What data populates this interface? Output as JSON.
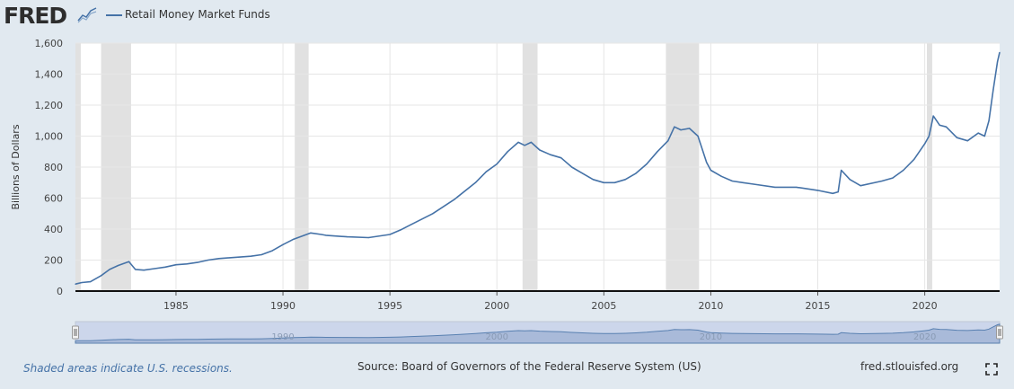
{
  "header": {
    "logo_text": "FRED",
    "legend_label": "Retail Money Market Funds"
  },
  "colors": {
    "series": "#4572a7",
    "recession": "#e1e1e1",
    "background": "#e1e9f0",
    "plot_bg": "#ffffff"
  },
  "chart_data": {
    "type": "line",
    "title": "",
    "ylabel": "Billions of Dollars",
    "xlabel": "",
    "xlim": [
      1980.3,
      2023.5
    ],
    "ylim": [
      0,
      1600
    ],
    "x_ticks": [
      1985,
      1990,
      1995,
      2000,
      2005,
      2010,
      2015,
      2020
    ],
    "y_ticks": [
      0,
      200,
      400,
      600,
      800,
      1000,
      1200,
      1400,
      1600
    ],
    "y_tick_labels": [
      "0",
      "200",
      "400",
      "600",
      "800",
      "1,000",
      "1,200",
      "1,400",
      "1,600"
    ],
    "recessions": [
      [
        1980.0,
        1980.55
      ],
      [
        1981.5,
        1982.9
      ],
      [
        1990.55,
        1991.2
      ],
      [
        2001.2,
        2001.9
      ],
      [
        2007.9,
        2009.45
      ],
      [
        2020.1,
        2020.35
      ]
    ],
    "series": [
      {
        "name": "Retail Money Market Funds",
        "x": [
          1980.3,
          1980.6,
          1981.0,
          1981.5,
          1981.9,
          1982.3,
          1982.8,
          1983.1,
          1983.5,
          1984.0,
          1984.5,
          1985.0,
          1985.5,
          1986.0,
          1986.5,
          1987.0,
          1987.5,
          1988.0,
          1988.5,
          1989.0,
          1989.5,
          1990.0,
          1990.5,
          1991.0,
          1991.3,
          1991.8,
          1992.0,
          1993.0,
          1994.0,
          1995.0,
          1995.5,
          1996.0,
          1997.0,
          1998.0,
          1999.0,
          1999.5,
          2000.0,
          2000.5,
          2001.0,
          2001.3,
          2001.6,
          2002.0,
          2002.5,
          2003.0,
          2003.5,
          2004.0,
          2004.5,
          2005.0,
          2005.5,
          2006.0,
          2006.5,
          2007.0,
          2007.5,
          2008.0,
          2008.3,
          2008.6,
          2009.0,
          2009.4,
          2009.8,
          2010.0,
          2010.5,
          2011.0,
          2011.5,
          2012.0,
          2013.0,
          2014.0,
          2015.0,
          2015.7,
          2015.95,
          2016.1,
          2016.5,
          2017.0,
          2018.0,
          2018.5,
          2019.0,
          2019.5,
          2020.0,
          2020.2,
          2020.4,
          2020.7,
          2021.0,
          2021.5,
          2022.0,
          2022.5,
          2022.8,
          2023.0,
          2023.2,
          2023.4,
          2023.5
        ],
        "values": [
          45,
          55,
          60,
          100,
          140,
          165,
          190,
          140,
          135,
          145,
          155,
          170,
          175,
          185,
          200,
          210,
          215,
          220,
          225,
          235,
          260,
          300,
          335,
          360,
          375,
          365,
          360,
          350,
          345,
          365,
          395,
          430,
          500,
          590,
          700,
          770,
          820,
          900,
          960,
          940,
          960,
          910,
          880,
          860,
          800,
          760,
          720,
          700,
          700,
          720,
          760,
          820,
          900,
          970,
          1060,
          1040,
          1050,
          1000,
          830,
          780,
          740,
          710,
          700,
          690,
          670,
          670,
          650,
          630,
          640,
          780,
          720,
          680,
          710,
          730,
          780,
          850,
          950,
          1000,
          1130,
          1070,
          1060,
          990,
          970,
          1020,
          1000,
          1100,
          1300,
          1480,
          1540
        ]
      }
    ]
  },
  "navigator": {
    "label_1990": "1990",
    "label_2000": "2000",
    "label_2010": "2010",
    "label_2020": "2020"
  },
  "footer": {
    "note": "Shaded areas indicate U.S. recessions.",
    "source": "Source: Board of Governors of the Federal Reserve System (US)",
    "url": "fred.stlouisfed.org"
  }
}
